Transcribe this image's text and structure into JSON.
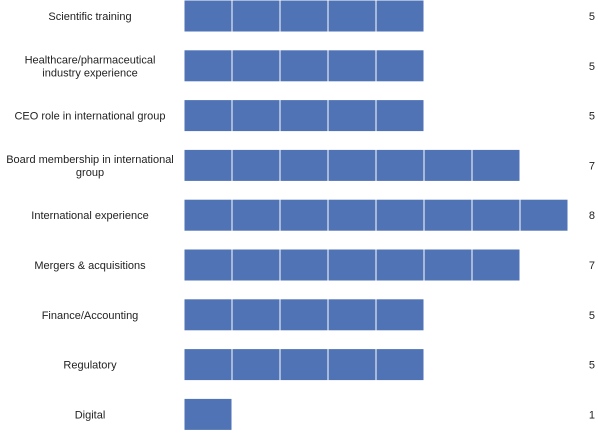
{
  "chart_data": {
    "type": "bar",
    "orientation": "horizontal",
    "categories": [
      "Scientific training",
      "Healthcare/pharmaceutical industry experience",
      "CEO role in international group",
      "Board membership in international group",
      "International experience",
      "Mergers & acquisitions",
      "Finance/Accounting",
      "Regulatory",
      "Digital"
    ],
    "values": [
      5,
      5,
      5,
      7,
      8,
      7,
      5,
      5,
      1
    ],
    "value_labels": [
      "5",
      "5",
      "5",
      "7",
      "8",
      "7",
      "5",
      "5",
      "1"
    ],
    "xlim": [
      0,
      8
    ],
    "bar_color": "#4f73b4",
    "segment_divider_color": "#ffffff",
    "grid": false,
    "title": "",
    "xlabel": "",
    "ylabel": ""
  }
}
